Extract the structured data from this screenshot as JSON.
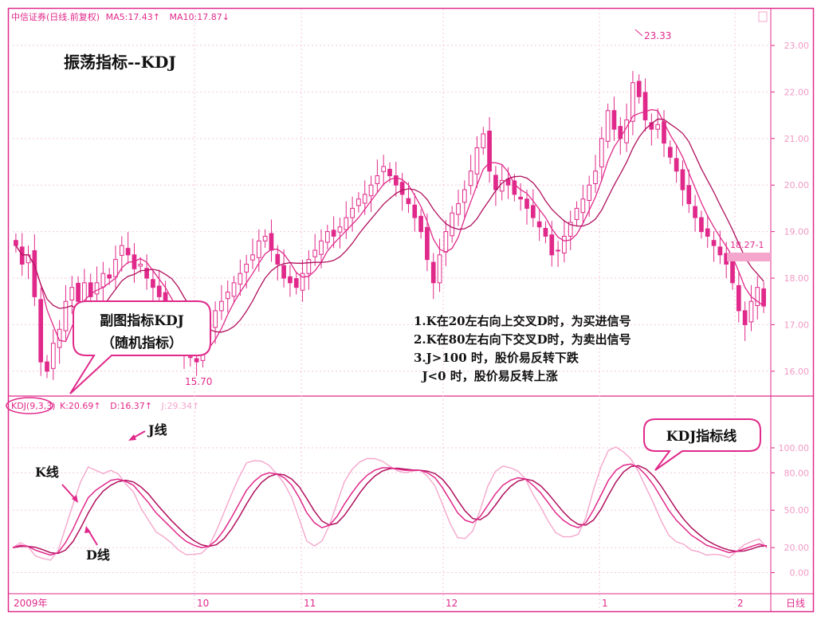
{
  "header": {
    "title": "中信证券(日线.前复权)",
    "ma5": "MA5:17.43↑",
    "ma10": "MA10:17.87↓"
  },
  "sub_header": {
    "name": "KDJ(9,3,3)",
    "k": "K:20.69↑",
    "d": "D:16.37↑",
    "j": "J:29.34↑"
  },
  "annotations": {
    "main_title": "振荡指标--KDJ",
    "bubble1": [
      "副图指标KDJ",
      "（随机指标）"
    ],
    "bubble2": "KDJ指标线",
    "rules": [
      "1.K在20左右向上交叉D时，为买进信号",
      "2.K在80左右向下交叉D时，为卖出信号",
      "3.J>100 时，股价易反转下跌",
      "  J<0 时，股价易反转上涨"
    ],
    "k_label": "K线",
    "d_label": "D线",
    "j_label": "J线",
    "high_mark": "23.33",
    "low_mark": "15.70",
    "price_tag": "18.27-1"
  },
  "footer": {
    "months": [
      "2009年",
      "10",
      "11",
      "12",
      "1",
      "2"
    ],
    "period": "日线"
  },
  "colors": {
    "magenta": "#E0298A",
    "light_pink": "#F4A6CC",
    "dark_line": "#B0105E",
    "frame": "#E0298A"
  },
  "chart_data": [
    {
      "type": "candlestick",
      "panel": "price",
      "ylim": [
        15.5,
        23.6
      ],
      "yticks": [
        "23.00",
        "22.00",
        "21.00",
        "20.00",
        "19.00",
        "18.00",
        "17.00",
        "16.00"
      ],
      "ytick_values": [
        23,
        22,
        21,
        20,
        19,
        18,
        17,
        16
      ],
      "high": 23.33,
      "low": 15.7,
      "last_price_tag": "18.27-1",
      "close": [
        18.7,
        18.3,
        18.5,
        17.6,
        16.2,
        16.0,
        16.6,
        16.9,
        17.5,
        17.8,
        17.5,
        17.9,
        17.6,
        17.9,
        18.1,
        18.0,
        18.4,
        18.7,
        18.5,
        18.2,
        18.3,
        18.0,
        17.8,
        17.6,
        17.3,
        17.1,
        16.7,
        16.4,
        16.3,
        16.2,
        16.6,
        17.0,
        17.3,
        17.5,
        17.7,
        17.9,
        18.1,
        18.3,
        18.5,
        18.8,
        18.9,
        18.6,
        18.3,
        18.0,
        17.9,
        17.8,
        18.1,
        18.4,
        18.6,
        18.8,
        19.0,
        18.9,
        19.1,
        19.3,
        19.5,
        19.7,
        19.8,
        20.0,
        20.2,
        20.4,
        20.2,
        20.0,
        19.8,
        19.6,
        19.3,
        19.0,
        18.4,
        17.9,
        18.5,
        19.0,
        19.4,
        19.6,
        19.9,
        20.3,
        20.8,
        21.1,
        20.3,
        19.9,
        20.1,
        20.0,
        19.8,
        19.7,
        19.5,
        19.3,
        19.1,
        18.9,
        18.5,
        18.6,
        18.9,
        19.2,
        19.5,
        19.7,
        20.0,
        20.3,
        21.0,
        21.6,
        21.2,
        21.0,
        21.4,
        22.2,
        21.9,
        21.4,
        21.2,
        21.3,
        20.9,
        20.6,
        20.3,
        19.9,
        19.6,
        19.3,
        19.0,
        18.9,
        18.7,
        18.5,
        18.3,
        17.9,
        17.3,
        17.0,
        17.5,
        17.8,
        17.4
      ],
      "k_series": [
        20,
        22,
        21,
        18,
        16,
        14,
        16,
        24,
        35,
        48,
        60,
        66,
        70,
        74,
        75,
        73,
        70,
        63,
        56,
        48,
        42,
        36,
        30,
        25,
        22,
        20,
        21,
        26,
        34,
        44,
        55,
        66,
        73,
        78,
        80,
        79,
        76,
        70,
        60,
        48,
        40,
        36,
        38,
        45,
        55,
        64,
        72,
        78,
        82,
        84,
        84,
        83,
        82,
        82,
        82,
        80,
        76,
        68,
        58,
        48,
        42,
        40,
        45,
        54,
        63,
        70,
        74,
        76,
        75,
        70,
        64,
        56,
        48,
        42,
        38,
        36,
        40,
        50,
        62,
        74,
        82,
        86,
        87,
        84,
        78,
        70,
        60,
        50,
        42,
        36,
        30,
        26,
        22,
        20,
        18,
        16,
        17,
        19,
        21,
        23,
        21
      ]
    },
    {
      "type": "line",
      "panel": "KDJ",
      "ylim": [
        -15,
        130
      ],
      "yticks": [
        "100.00",
        "80.00",
        "50.00",
        "20.00",
        "0.00"
      ],
      "ytick_values": [
        100,
        80,
        50,
        20,
        0
      ]
    }
  ]
}
